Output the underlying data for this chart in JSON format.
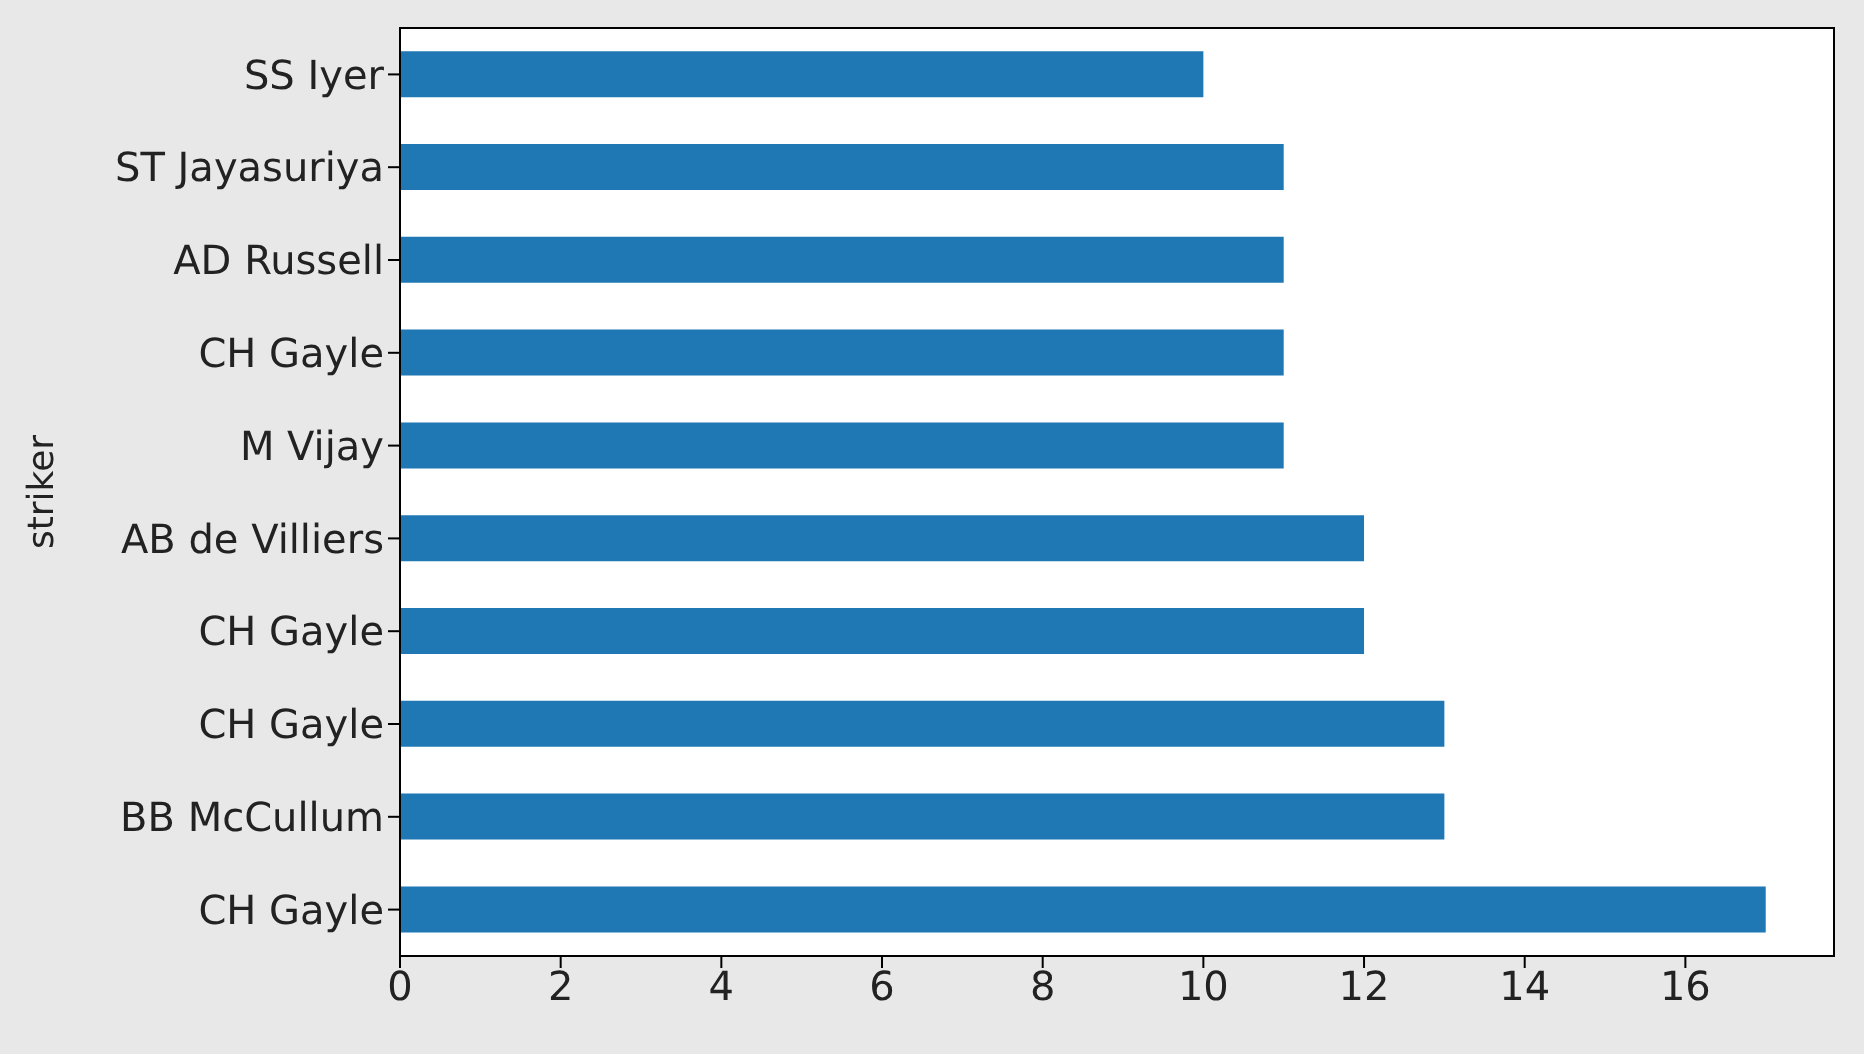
{
  "chart_data": {
    "type": "bar",
    "orientation": "horizontal",
    "ylabel": "striker",
    "categories": [
      "SS Iyer",
      "ST Jayasuriya",
      "AD Russell",
      "CH Gayle",
      "M Vijay",
      "AB de Villiers",
      "CH Gayle",
      "CH Gayle",
      "BB McCullum",
      "CH Gayle"
    ],
    "values": [
      10,
      11,
      11,
      11,
      11,
      12,
      12,
      13,
      13,
      17
    ],
    "color": "#1f77b4",
    "xlim": [
      0,
      17.85
    ],
    "xticks": [
      0,
      2,
      4,
      6,
      8,
      10,
      12,
      14,
      16
    ]
  }
}
